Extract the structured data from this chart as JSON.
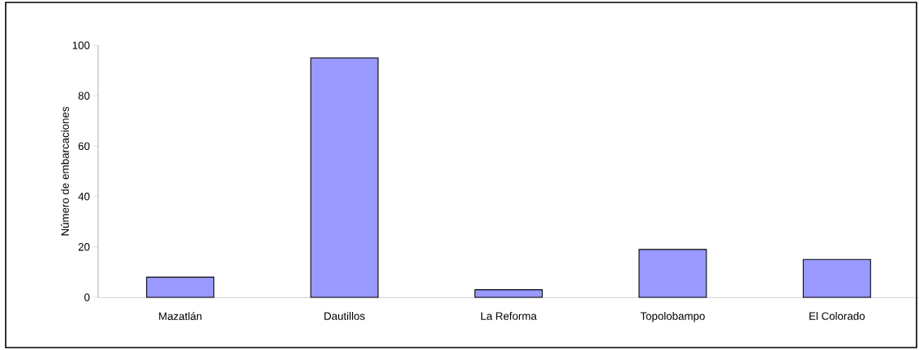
{
  "chart_data": {
    "type": "bar",
    "ylabel": "Número de embarcaciones",
    "categories": [
      "Mazatlán",
      "Dautillos",
      "La Reforma",
      "Topolobampo",
      "El Colorado"
    ],
    "values": [
      8,
      95,
      3,
      19,
      15
    ],
    "color": "#9999ff",
    "ylim": [
      0,
      100
    ],
    "yticks": [
      0,
      20,
      40,
      60,
      80,
      100
    ],
    "grid": false
  }
}
